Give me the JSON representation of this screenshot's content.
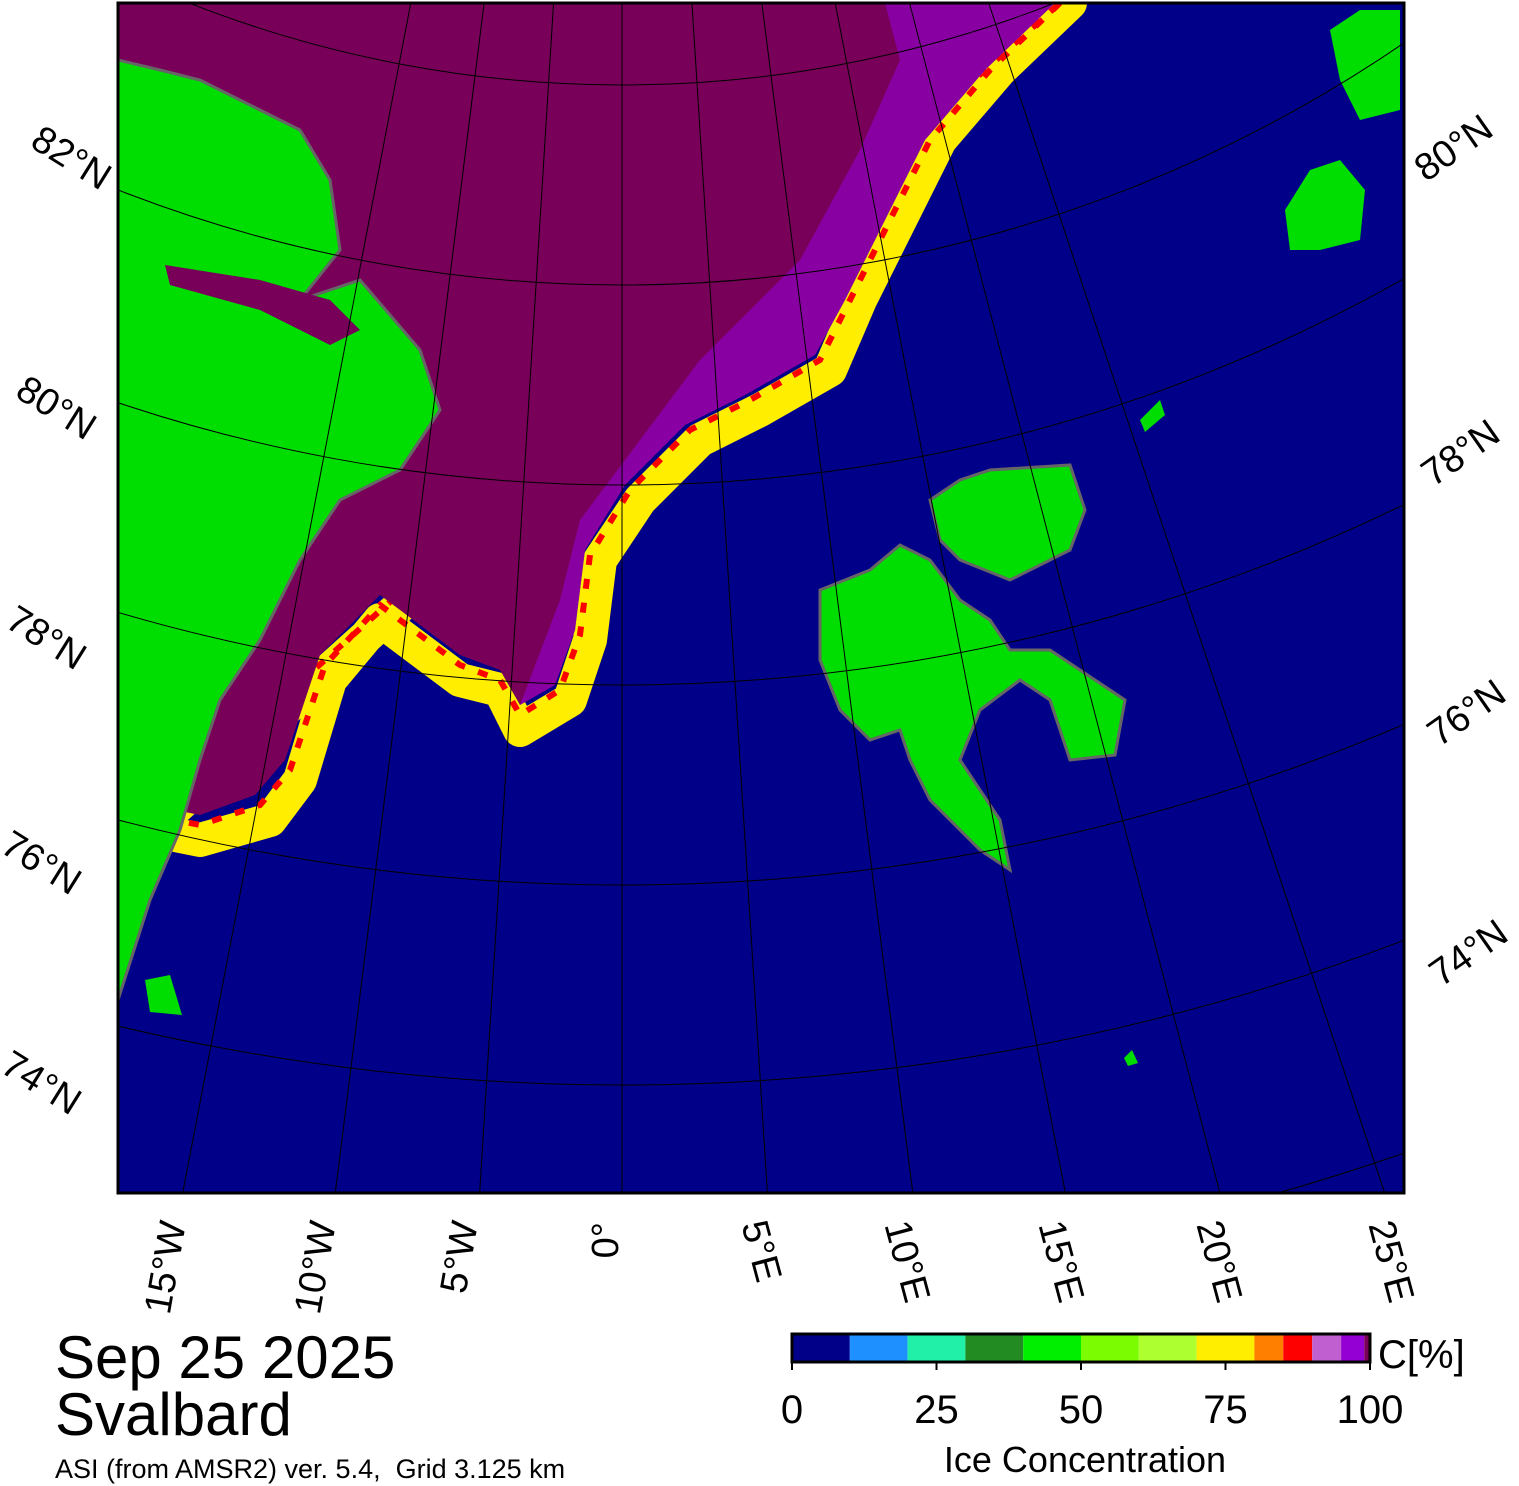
{
  "header": {
    "date": "Sep 25 2025",
    "region": "Svalbard",
    "source": "ASI (from AMSR2) ver. 5.4,  Grid 3.125 km"
  },
  "map": {
    "lat_labels_left": [
      "82°N",
      "80°N",
      "78°N",
      "76°N",
      "74°N"
    ],
    "lat_labels_right": [
      "80°N",
      "78°N",
      "76°N",
      "74°N"
    ],
    "lon_labels": [
      "15°W",
      "10°W",
      "5°W",
      "0°",
      "5°E",
      "10°E",
      "15°E",
      "20°E",
      "25°E"
    ]
  },
  "colorbar": {
    "label": "C[%]",
    "title": "Ice Concentration",
    "lim": [
      0,
      100
    ],
    "ticks": [
      0,
      25,
      50,
      75,
      100
    ],
    "bounds": [
      0,
      10,
      20,
      30,
      40,
      50,
      60,
      70,
      80,
      85,
      90,
      95,
      99,
      100
    ],
    "colors": [
      "#000088",
      "#1e90ff",
      "#20f0a8",
      "#228b22",
      "#00ee00",
      "#7cfc00",
      "#adff2f",
      "#ffee00",
      "#ff8000",
      "#ff0000",
      "#c060d0",
      "#9400d3",
      "#780058"
    ]
  }
}
